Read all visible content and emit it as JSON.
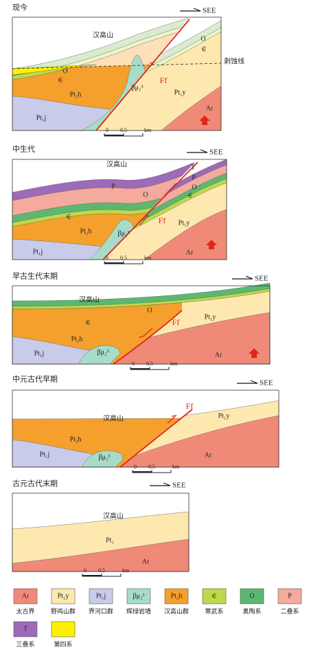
{
  "panels": [
    {
      "title": "现今",
      "direction": "SEE",
      "annotation": "剥蚀线",
      "labels": [
        "汉高山",
        "O",
        "∈",
        "Pt₂h",
        "βμ₂³",
        "Ff",
        "Pt₁y",
        "Pt₁j",
        "O",
        "∈",
        "Ar"
      ],
      "scale": [
        "0",
        "0.5",
        "km"
      ]
    },
    {
      "title": "中生代",
      "direction": "SEE",
      "labels": [
        "汉高山",
        "T",
        "P",
        "O",
        "∈",
        "P",
        "O",
        "∈",
        "Pt₂h",
        "βμ₂³",
        "Ff",
        "Pt₁y",
        "Pt₁j",
        "Ar"
      ],
      "scale": [
        "0",
        "0.5",
        "km"
      ]
    },
    {
      "title": "早古生代末期",
      "direction": "SEE",
      "labels": [
        "汉高山",
        "O",
        "∈",
        "Ff",
        "Pt₁y",
        "Pt₂h",
        "βμ₂³",
        "Pt₁j",
        "Ar"
      ],
      "scale": [
        "0",
        "0.5",
        "km"
      ]
    },
    {
      "title": "中元古代早期",
      "direction": "SEE",
      "labels": [
        "汉高山",
        "Ff",
        "Pt₁y",
        "Pt₂h",
        "Pt₁j",
        "βμ₂³",
        "Ar"
      ],
      "scale": [
        "0",
        "0.5",
        "km"
      ]
    },
    {
      "title": "古元古代末期",
      "direction": "SEE",
      "labels": [
        "汉高山",
        "Pt₁",
        "Ar"
      ],
      "scale": [
        "0",
        "0.5",
        "km"
      ]
    }
  ],
  "legend": [
    {
      "symbol": "Ar",
      "name": "太古界"
    },
    {
      "symbol": "Pt₁y",
      "name": "野鸡山群"
    },
    {
      "symbol": "Pt₁j",
      "name": "界河口群"
    },
    {
      "symbol": "βμ₂³",
      "name": "辉绿岩墙"
    },
    {
      "symbol": "Pt₂h",
      "name": "汉高山群"
    },
    {
      "symbol": "∈",
      "name": "寒武系"
    },
    {
      "symbol": "O",
      "name": "奥陶系"
    },
    {
      "symbol": "P",
      "name": "二叠系"
    },
    {
      "symbol": "T",
      "name": "三叠系"
    },
    {
      "name": "第四系"
    }
  ]
}
